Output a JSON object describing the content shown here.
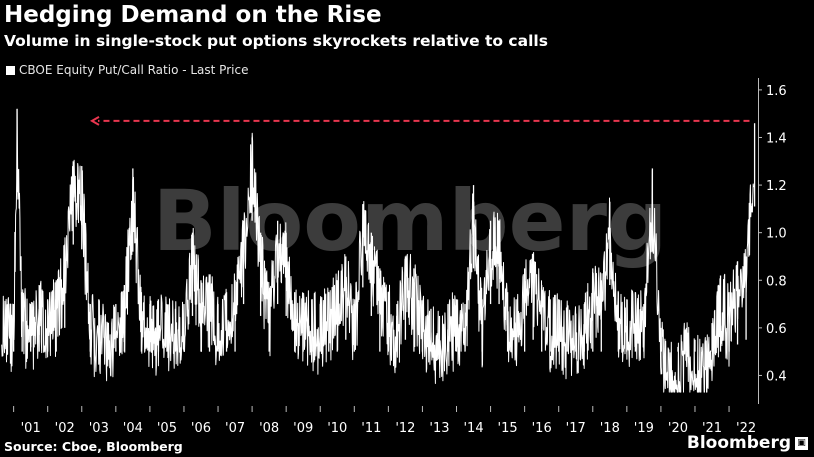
{
  "title": "Hedging Demand on the Rise",
  "subtitle": "Volume in single-stock put options skyrockets relative to calls",
  "source": "Source: Cboe, Bloomberg",
  "brand": "Bloomberg",
  "watermark": "Bloomberg",
  "colors": {
    "background": "#000000",
    "series": "#ffffff",
    "reference_line": "#e8364f",
    "watermark": "#3c3c3c"
  },
  "chart_data": {
    "type": "line",
    "title": "Hedging Demand on the Rise",
    "subtitle": "Volume in single-stock put options skyrockets relative to calls",
    "xlabel": "",
    "ylabel": "",
    "y_axis_position": "right",
    "ylim": [
      0.28,
      1.65
    ],
    "yticks": [
      0.4,
      0.6,
      0.8,
      1.0,
      1.2,
      1.4,
      1.6
    ],
    "xlim": [
      2000.6,
      2022.85
    ],
    "xticks": [
      "'01",
      "'02",
      "'03",
      "'04",
      "'05",
      "'06",
      "'07",
      "'08",
      "'09",
      "'10",
      "'11",
      "'12",
      "'13",
      "'14",
      "'15",
      "'16",
      "'17",
      "'18",
      "'19",
      "'20",
      "'21",
      "'22"
    ],
    "grid": false,
    "legend_position": "top-left",
    "series": [
      {
        "name": "CBOE Equity Put/Call Ratio - Last Price",
        "x": [
          2001.0,
          2001.1,
          2001.25,
          2001.5,
          2001.75,
          2002.0,
          2002.25,
          2002.5,
          2002.75,
          2003.0,
          2003.25,
          2003.5,
          2003.75,
          2004.0,
          2004.25,
          2004.5,
          2004.75,
          2005.0,
          2005.25,
          2005.5,
          2005.75,
          2006.0,
          2006.25,
          2006.5,
          2006.75,
          2007.0,
          2007.25,
          2007.5,
          2007.75,
          2008.0,
          2008.25,
          2008.5,
          2008.75,
          2009.0,
          2009.25,
          2009.5,
          2009.75,
          2010.0,
          2010.25,
          2010.5,
          2010.75,
          2011.0,
          2011.25,
          2011.5,
          2011.75,
          2012.0,
          2012.25,
          2012.5,
          2012.75,
          2013.0,
          2013.25,
          2013.5,
          2013.75,
          2014.0,
          2014.25,
          2014.5,
          2014.75,
          2015.0,
          2015.25,
          2015.5,
          2015.75,
          2016.0,
          2016.25,
          2016.5,
          2016.75,
          2017.0,
          2017.25,
          2017.5,
          2017.75,
          2018.0,
          2018.25,
          2018.5,
          2018.75,
          2019.0,
          2019.25,
          2019.5,
          2019.75,
          2020.0,
          2020.25,
          2020.5,
          2020.75,
          2021.0,
          2021.25,
          2021.5,
          2021.75,
          2022.0,
          2022.25,
          2022.5,
          2022.75
        ],
        "y": [
          0.7,
          1.52,
          0.75,
          0.7,
          0.78,
          0.72,
          0.8,
          0.95,
          1.3,
          1.28,
          0.7,
          0.72,
          0.62,
          0.7,
          0.78,
          1.27,
          0.75,
          0.7,
          0.72,
          0.7,
          0.68,
          0.7,
          1.0,
          0.8,
          0.82,
          0.7,
          0.75,
          0.8,
          1.05,
          1.4,
          1.0,
          0.75,
          1.05,
          1.0,
          0.75,
          0.72,
          0.72,
          0.7,
          0.75,
          0.8,
          0.9,
          0.7,
          1.12,
          1.0,
          0.85,
          0.75,
          0.7,
          0.9,
          0.85,
          0.7,
          0.68,
          0.65,
          0.7,
          0.72,
          0.7,
          1.2,
          0.72,
          1.05,
          1.05,
          0.75,
          0.72,
          0.85,
          0.9,
          0.78,
          0.72,
          0.72,
          0.68,
          0.66,
          0.7,
          0.85,
          0.8,
          1.13,
          0.75,
          0.72,
          0.75,
          0.7,
          1.27,
          0.6,
          0.5,
          0.52,
          0.6,
          0.55,
          0.5,
          0.62,
          0.82,
          0.75,
          0.88,
          0.9,
          1.46
        ]
      }
    ],
    "annotations": [
      {
        "type": "dashed-arrow",
        "direction": "left",
        "y": 1.47,
        "x_from": 2022.6,
        "x_to": 2003.3
      }
    ]
  }
}
